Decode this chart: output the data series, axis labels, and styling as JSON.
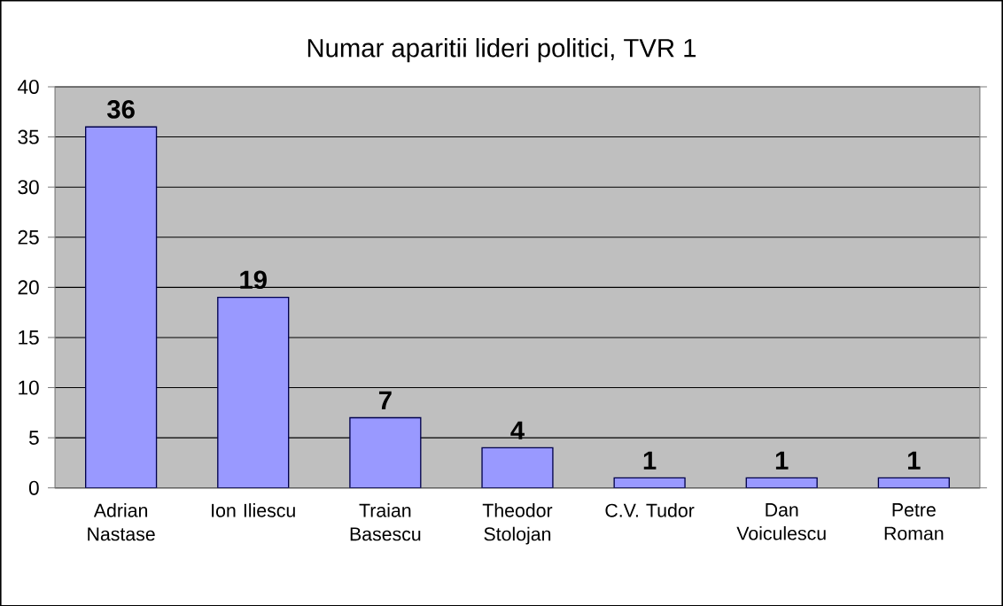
{
  "chart_data": {
    "type": "bar",
    "title": "Numar aparitii lideri politici, TVR 1",
    "categories": [
      "Adrian Nastase",
      "Ion Iliescu",
      "Traian Basescu",
      "Theodor Stolojan",
      "C.V. Tudor",
      "Dan Voiculescu",
      "Petre Roman"
    ],
    "values": [
      36,
      19,
      7,
      4,
      1,
      1,
      1
    ],
    "color": "#9999ff",
    "ylim": [
      0,
      40
    ],
    "yticks": [
      0,
      5,
      10,
      15,
      20,
      25,
      30,
      35,
      40
    ],
    "grid": "y",
    "data_labels": true
  }
}
